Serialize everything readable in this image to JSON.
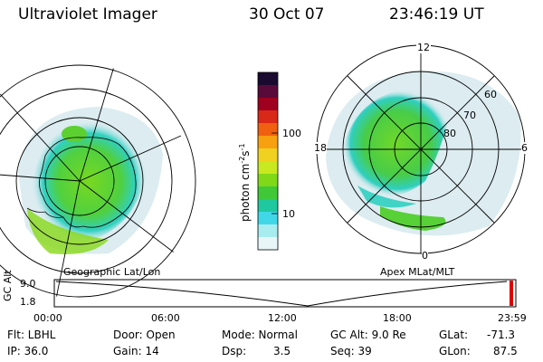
{
  "header": {
    "title": "Ultraviolet Imager",
    "date": "30 Oct 07",
    "time": "23:46:19 UT"
  },
  "left_panel": {
    "label": "Geographic Lat/Lon"
  },
  "right_panel": {
    "label": "Apex MLat/MLT",
    "mlt_labels": [
      "12",
      "18",
      "6",
      "0"
    ],
    "mlat_labels": [
      "60",
      "70",
      "80"
    ]
  },
  "colorbar": {
    "unit": "photon cm",
    "unit_exp1": "-2",
    "unit_mid": "s",
    "unit_exp2": "-1",
    "ticks": [
      "100",
      "10"
    ],
    "colors": [
      "#1a0a30",
      "#5a0a3a",
      "#a00020",
      "#d82818",
      "#f06010",
      "#f8a010",
      "#f0d020",
      "#c8e820",
      "#80d818",
      "#40c838",
      "#20c8a0",
      "#40d8e8",
      "#a8ecf0",
      "#e8f6f8"
    ]
  },
  "timeline": {
    "axis_label": "GC Alt",
    "y_ticks": [
      "9.0",
      "1.8"
    ],
    "x_ticks": [
      "00:00",
      "06:00",
      "12:00",
      "18:00",
      "23:59"
    ]
  },
  "info": {
    "flt": "Flt: LBHL",
    "ip": "IP: 36.0",
    "door": "Door: Open",
    "gain": "Gain: 14",
    "mode": "Mode: Normal",
    "dsp_label": "Dsp:",
    "dsp_value": "3.5",
    "gcalt": "GC Alt: 9.0 Re",
    "seq": "Seq: 39",
    "glat_label": "GLat:",
    "glat_value": "-71.3",
    "glon_label": "GLon:",
    "glon_value": "87.5"
  },
  "colors": {
    "aurora_green": "#60d020",
    "aurora_cyan": "#30d0c0",
    "background_pale": "#dcecf0",
    "marker_red": "#e00000"
  }
}
